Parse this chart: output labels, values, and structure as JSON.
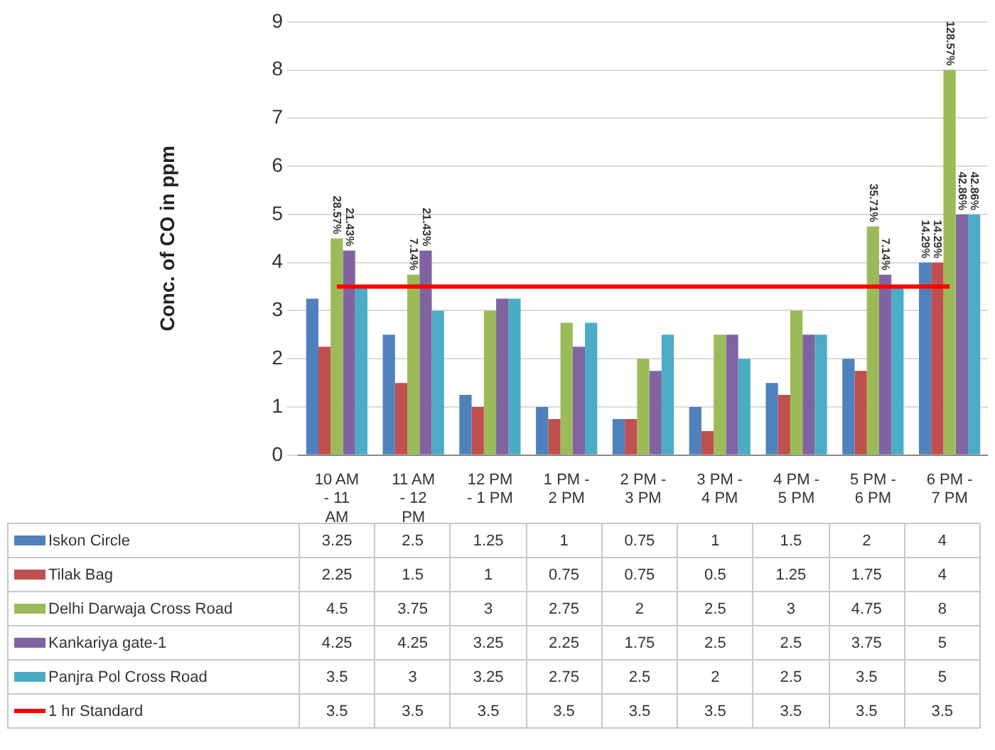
{
  "chart_data": {
    "type": "bar",
    "ylabel": "Conc. of CO in ppm",
    "categories": [
      "10 AM - 11 AM",
      "11 AM - 12 PM",
      "12 PM - 1 PM",
      "1 PM - 2 PM",
      "2 PM - 3 PM",
      "3 PM - 4 PM",
      "4 PM - 5 PM",
      "5 PM - 6 PM",
      "6 PM - 7 PM"
    ],
    "series": [
      {
        "name": "Iskon Circle",
        "color": "#4f81bd",
        "values": [
          3.25,
          2.5,
          1.25,
          1,
          0.75,
          1,
          1.5,
          2,
          4
        ]
      },
      {
        "name": "Tilak Bag",
        "color": "#c0504d",
        "values": [
          2.25,
          1.5,
          1,
          0.75,
          0.75,
          0.5,
          1.25,
          1.75,
          4
        ]
      },
      {
        "name": "Delhi Darwaja Cross Road",
        "color": "#9bbb59",
        "values": [
          4.5,
          3.75,
          3,
          2.75,
          2,
          2.5,
          3,
          4.75,
          8
        ]
      },
      {
        "name": "Kankariya gate-1",
        "color": "#8064a2",
        "values": [
          4.25,
          4.25,
          3.25,
          2.25,
          1.75,
          2.5,
          2.5,
          3.75,
          5
        ]
      },
      {
        "name": "Panjra Pol Cross Road",
        "color": "#4bacc6",
        "values": [
          3.5,
          3,
          3.25,
          2.75,
          2.5,
          2,
          2.5,
          3.5,
          5
        ]
      },
      {
        "name": "1 hr Standard",
        "type": "line",
        "color": "#ff0000",
        "values": [
          3.5,
          3.5,
          3.5,
          3.5,
          3.5,
          3.5,
          3.5,
          3.5,
          3.5
        ]
      }
    ],
    "annotations": [
      {
        "text": "28.57%",
        "x": "10 AM - 11 AM",
        "y": 4.5
      },
      {
        "text": "21.43%",
        "x": "10 AM - 11 AM",
        "y": 4.25
      },
      {
        "text": "7.14%",
        "x": "11 AM - 12 PM",
        "y": 3.75
      },
      {
        "text": "21.43%",
        "x": "11 AM - 12 PM",
        "y": 4.25
      },
      {
        "text": "35.71%",
        "x": "5 PM - 6 PM",
        "y": 4.75
      },
      {
        "text": "7.14%",
        "x": "5 PM - 6 PM",
        "y": 3.75
      },
      {
        "text": "14.29%",
        "x": "6 PM - 7 PM",
        "y": 4
      },
      {
        "text": "14.29%",
        "x": "6 PM - 7 PM",
        "y": 4
      },
      {
        "text": "128.57%",
        "x": "6 PM - 7 PM",
        "y": 8
      },
      {
        "text": "42.86%",
        "x": "6 PM - 7 PM",
        "y": 5
      },
      {
        "text": "42.86%",
        "x": "6 PM - 7 PM",
        "y": 5
      }
    ],
    "ylim": [
      0,
      9
    ],
    "yticks": [
      0,
      1,
      2,
      3,
      4,
      5,
      6,
      7,
      8,
      9
    ],
    "grid": "y",
    "legend": "bottom",
    "marker": "none",
    "data_labels": true
  }
}
